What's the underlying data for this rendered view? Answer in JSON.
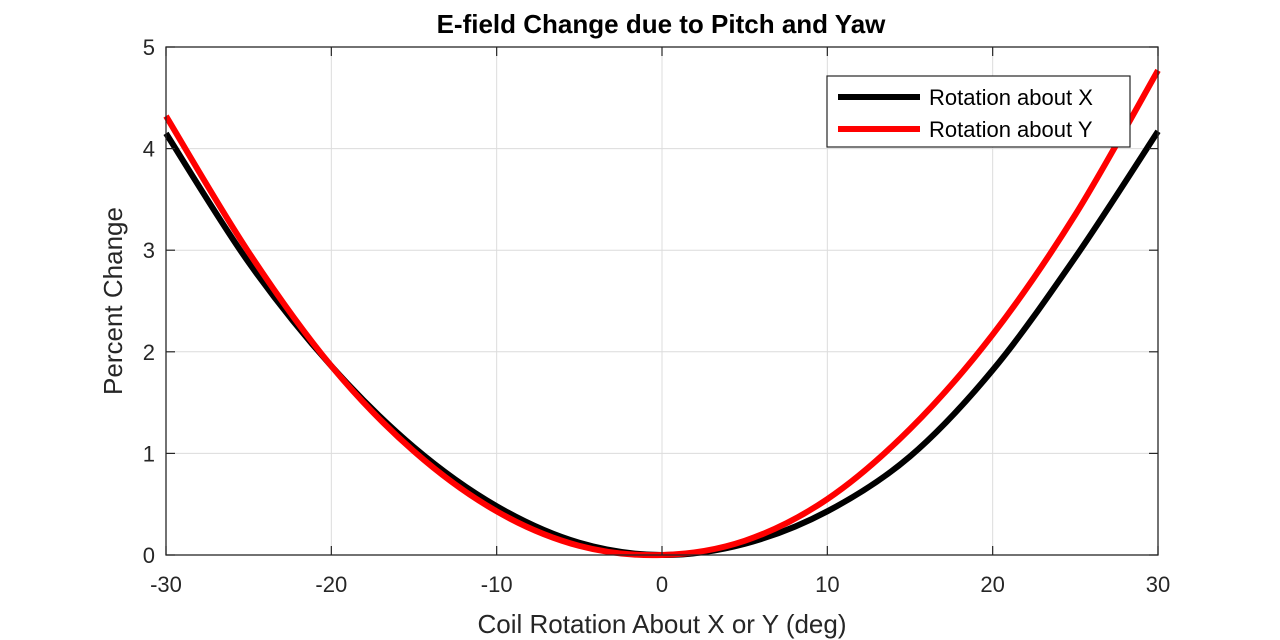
{
  "chart_data": {
    "type": "line",
    "title": "E-field Change due to Pitch and Yaw",
    "xlabel": "Coil Rotation About X or Y (deg)",
    "ylabel": "Percent Change",
    "xlim": [
      -30,
      30
    ],
    "ylim": [
      0,
      5
    ],
    "xticks": [
      -30,
      -20,
      -10,
      0,
      10,
      20,
      30
    ],
    "yticks": [
      0,
      1,
      2,
      3,
      4,
      5
    ],
    "xtick_labels": [
      "-30",
      "-20",
      "-10",
      "0",
      "10",
      "20",
      "30"
    ],
    "ytick_labels": [
      "0",
      "1",
      "2",
      "3",
      "4",
      "5"
    ],
    "grid": true,
    "legend_position": "top-right",
    "series": [
      {
        "name": "Rotation about X",
        "color": "#000000",
        "x": [
          -30,
          -25,
          -20,
          -15,
          -10,
          -5,
          0,
          5,
          10,
          15,
          20,
          25,
          30
        ],
        "y": [
          4.15,
          2.88,
          1.86,
          1.06,
          0.48,
          0.12,
          0.0,
          0.11,
          0.43,
          0.97,
          1.82,
          2.93,
          4.17
        ]
      },
      {
        "name": "Rotation about Y",
        "color": "#ff0000",
        "x": [
          -30,
          -25,
          -20,
          -15,
          -10,
          -5,
          0,
          5,
          10,
          15,
          20,
          25,
          30
        ],
        "y": [
          4.32,
          2.98,
          1.86,
          1.02,
          0.43,
          0.09,
          0.0,
          0.14,
          0.55,
          1.24,
          2.17,
          3.35,
          4.77
        ]
      }
    ]
  }
}
